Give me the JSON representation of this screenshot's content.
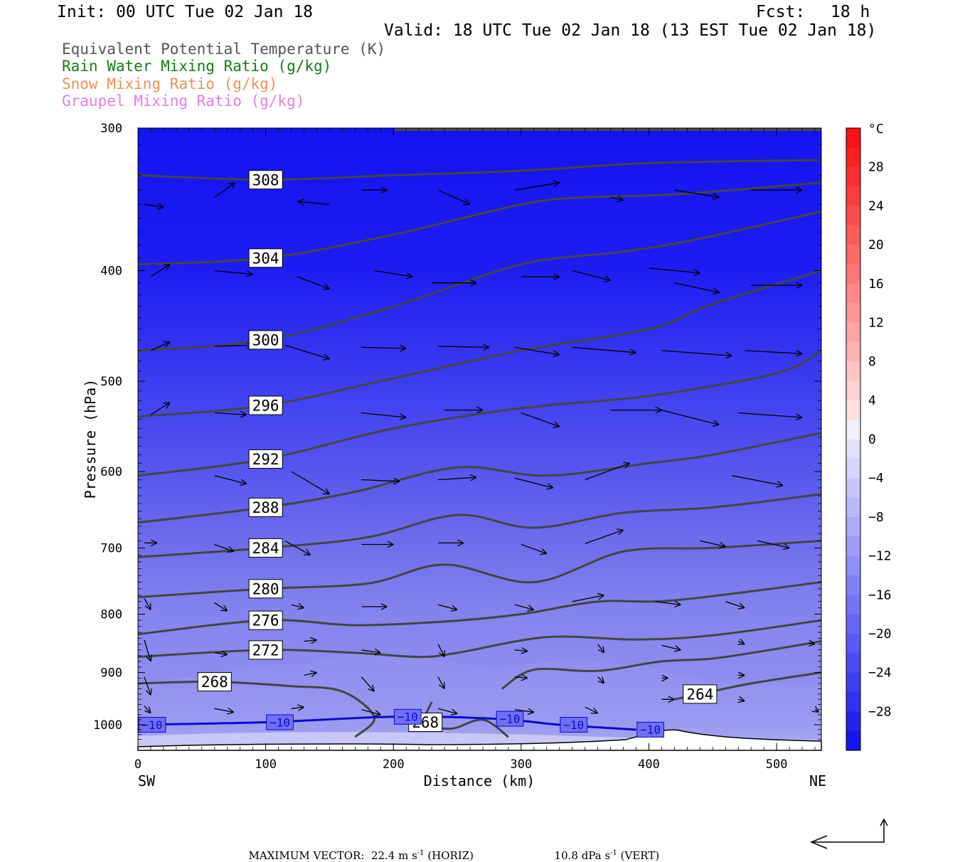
{
  "header": {
    "init": "Init: 00 UTC Tue 02 Jan 18",
    "fcst_label": "Fcst:",
    "fcst_value": "18 h",
    "valid": "Valid: 18 UTC Tue 02 Jan 18 (13 EST Tue 02 Jan 18)"
  },
  "legend": [
    {
      "label": "Equivalent Potential Temperature (K)",
      "color": "#555555"
    },
    {
      "label": "Rain Water Mixing Ratio (g/kg)",
      "color": "#1a7a1a"
    },
    {
      "label": "Snow Mixing Ratio (g/kg)",
      "color": "#f0905a"
    },
    {
      "label": "Graupel Mixing Ratio (g/kg)",
      "color": "#e87ee0"
    }
  ],
  "axes": {
    "ylabel": "Pressure (hPa)",
    "xlabel": "Distance (km)",
    "left_end": "SW",
    "right_end": "NE",
    "y_ticks": [
      "300",
      "400",
      "500",
      "600",
      "700",
      "800",
      "900",
      "1000"
    ],
    "x_ticks": [
      "0",
      "100",
      "200",
      "300",
      "400",
      "500"
    ]
  },
  "colorbar": {
    "unit": "°C",
    "labels": [
      "28",
      "24",
      "20",
      "16",
      "12",
      "8",
      "4",
      "0",
      "−4",
      "−8",
      "−12",
      "−16",
      "−20",
      "−24",
      "−28"
    ]
  },
  "footer": {
    "max_vector_label": "MAXIMUM VECTOR:",
    "horiz": "22.4 m s",
    "horiz_suffix": " (HORIZ)",
    "vert": "10.8 dPa s",
    "vert_suffix": " (VERT)",
    "exp": "-1"
  },
  "chart_data": {
    "type": "cross-section",
    "x_range_km": [
      0,
      535
    ],
    "y_range_hpa": [
      300,
      1030
    ],
    "y_scale": "log-pressure",
    "theta_e_contours": [
      {
        "value": 308,
        "label": "308",
        "points": [
          [
            0,
            330
          ],
          [
            100,
            333
          ],
          [
            200,
            330
          ],
          [
            300,
            327
          ],
          [
            400,
            322
          ],
          [
            535,
            320
          ]
        ]
      },
      {
        "value": 304,
        "label": "304",
        "points": [
          [
            0,
            395
          ],
          [
            100,
            390
          ],
          [
            200,
            372
          ],
          [
            300,
            350
          ],
          [
            350,
            345
          ],
          [
            420,
            343
          ],
          [
            535,
            335
          ]
        ]
      },
      {
        "value": 300,
        "label": "300",
        "points": [
          [
            0,
            470
          ],
          [
            100,
            460
          ],
          [
            200,
            430
          ],
          [
            300,
            395
          ],
          [
            380,
            385
          ],
          [
            440,
            375
          ],
          [
            535,
            355
          ]
        ]
      },
      {
        "value": 296,
        "label": "296",
        "points": [
          [
            0,
            537
          ],
          [
            100,
            525
          ],
          [
            200,
            497
          ],
          [
            300,
            470
          ],
          [
            400,
            450
          ],
          [
            450,
            428
          ],
          [
            535,
            400
          ]
        ]
      },
      {
        "value": 292,
        "label": "292",
        "points": [
          [
            0,
            605
          ],
          [
            100,
            585
          ],
          [
            200,
            550
          ],
          [
            300,
            528
          ],
          [
            400,
            515
          ],
          [
            500,
            492
          ],
          [
            535,
            470
          ]
        ]
      },
      {
        "value": 288,
        "label": "288",
        "points": [
          [
            0,
            665
          ],
          [
            100,
            645
          ],
          [
            170,
            625
          ],
          [
            250,
            595
          ],
          [
            320,
            605
          ],
          [
            400,
            590
          ],
          [
            450,
            580
          ],
          [
            535,
            555
          ]
        ]
      },
      {
        "value": 284,
        "label": "284",
        "points": [
          [
            0,
            713
          ],
          [
            100,
            700
          ],
          [
            180,
            685
          ],
          [
            250,
            655
          ],
          [
            310,
            672
          ],
          [
            380,
            652
          ],
          [
            450,
            645
          ],
          [
            535,
            628
          ]
        ]
      },
      {
        "value": 280,
        "label": "280",
        "points": [
          [
            0,
            773
          ],
          [
            100,
            760
          ],
          [
            180,
            752
          ],
          [
            240,
            724
          ],
          [
            310,
            750
          ],
          [
            380,
            705
          ],
          [
            450,
            700
          ],
          [
            535,
            690
          ]
        ]
      },
      {
        "value": 276,
        "label": "276",
        "points": [
          [
            0,
            833
          ],
          [
            100,
            810
          ],
          [
            170,
            818
          ],
          [
            240,
            812
          ],
          [
            300,
            800
          ],
          [
            360,
            780
          ],
          [
            420,
            778
          ],
          [
            535,
            750
          ]
        ]
      },
      {
        "value": 272,
        "label": "272",
        "points": [
          [
            0,
            872
          ],
          [
            100,
            860
          ],
          [
            170,
            865
          ],
          [
            220,
            872
          ],
          [
            250,
            865
          ],
          [
            320,
            838
          ],
          [
            390,
            842
          ],
          [
            450,
            835
          ],
          [
            535,
            810
          ]
        ]
      },
      {
        "value": 268,
        "label": "268",
        "points": [
          [
            0,
            920
          ],
          [
            60,
            917
          ],
          [
            120,
            925
          ],
          [
            160,
            935
          ],
          [
            185,
            985
          ],
          [
            170,
            1025
          ]
        ]
      },
      {
        "value": 268,
        "label": "268",
        "points": [
          [
            230,
            955
          ],
          [
            225,
            995
          ],
          [
            245,
            1008
          ],
          [
            270,
            990
          ],
          [
            290,
            1025
          ]
        ]
      },
      {
        "value": 268,
        "label": "",
        "points": [
          [
            285,
            930
          ],
          [
            310,
            895
          ],
          [
            360,
            897
          ],
          [
            410,
            880
          ],
          [
            450,
            875
          ],
          [
            500,
            858
          ],
          [
            535,
            845
          ]
        ]
      },
      {
        "value": 264,
        "label": "264",
        "points": [
          [
            420,
            950
          ],
          [
            440,
            940
          ],
          [
            480,
            920
          ],
          [
            535,
            900
          ]
        ]
      }
    ],
    "temperature_contour_minus10": {
      "label": "−10",
      "points": [
        [
          0,
          1000
        ],
        [
          100,
          995
        ],
        [
          200,
          984
        ],
        [
          280,
          988
        ],
        [
          330,
          1000
        ],
        [
          390,
          1010
        ]
      ]
    },
    "wind_vectors": [
      [
        5,
        350,
        20,
        352
      ],
      [
        60,
        345,
        76,
        335
      ],
      [
        150,
        350,
        125,
        348
      ],
      [
        175,
        340,
        195,
        340
      ],
      [
        235,
        340,
        260,
        350
      ],
      [
        295,
        340,
        330,
        335
      ],
      [
        370,
        345,
        380,
        347
      ],
      [
        420,
        340,
        455,
        345
      ],
      [
        480,
        340,
        520,
        340
      ],
      [
        10,
        405,
        25,
        395
      ],
      [
        60,
        400,
        90,
        403
      ],
      [
        125,
        405,
        150,
        415
      ],
      [
        185,
        400,
        215,
        405
      ],
      [
        230,
        410,
        265,
        410
      ],
      [
        300,
        405,
        330,
        405
      ],
      [
        340,
        400,
        370,
        408
      ],
      [
        400,
        398,
        440,
        402
      ],
      [
        420,
        410,
        455,
        418
      ],
      [
        480,
        412,
        520,
        412
      ],
      [
        10,
        470,
        25,
        462
      ],
      [
        60,
        466,
        90,
        465
      ],
      [
        115,
        465,
        150,
        478
      ],
      [
        175,
        467,
        210,
        468
      ],
      [
        235,
        466,
        275,
        467
      ],
      [
        295,
        467,
        330,
        474
      ],
      [
        340,
        467,
        390,
        472
      ],
      [
        410,
        470,
        465,
        475
      ],
      [
        475,
        470,
        520,
        473
      ],
      [
        10,
        535,
        25,
        522
      ],
      [
        60,
        533,
        85,
        535
      ],
      [
        175,
        533,
        210,
        538
      ],
      [
        240,
        530,
        270,
        530
      ],
      [
        300,
        533,
        330,
        548
      ],
      [
        370,
        530,
        410,
        530
      ],
      [
        410,
        530,
        455,
        546
      ],
      [
        470,
        533,
        520,
        538
      ],
      [
        60,
        605,
        85,
        615
      ],
      [
        120,
        600,
        150,
        628
      ],
      [
        175,
        610,
        205,
        612
      ],
      [
        235,
        610,
        265,
        607
      ],
      [
        295,
        608,
        325,
        620
      ],
      [
        350,
        610,
        385,
        590
      ],
      [
        465,
        605,
        505,
        617
      ],
      [
        5,
        693,
        15,
        693
      ],
      [
        60,
        695,
        75,
        705
      ],
      [
        115,
        690,
        135,
        710
      ],
      [
        175,
        695,
        200,
        695
      ],
      [
        235,
        693,
        255,
        693
      ],
      [
        300,
        695,
        320,
        708
      ],
      [
        350,
        694,
        380,
        675
      ],
      [
        440,
        690,
        460,
        698
      ],
      [
        485,
        690,
        510,
        700
      ],
      [
        5,
        775,
        10,
        793
      ],
      [
        60,
        782,
        70,
        795
      ],
      [
        120,
        785,
        130,
        790
      ],
      [
        175,
        788,
        195,
        788
      ],
      [
        235,
        785,
        250,
        793
      ],
      [
        295,
        785,
        310,
        793
      ],
      [
        340,
        780,
        365,
        770
      ],
      [
        405,
        780,
        425,
        785
      ],
      [
        460,
        780,
        475,
        790
      ],
      [
        5,
        843,
        10,
        880
      ],
      [
        60,
        865,
        70,
        868
      ],
      [
        130,
        845,
        140,
        843
      ],
      [
        175,
        860,
        190,
        865
      ],
      [
        235,
        850,
        240,
        872
      ],
      [
        295,
        860,
        305,
        862
      ],
      [
        360,
        850,
        365,
        865
      ],
      [
        410,
        852,
        425,
        860
      ],
      [
        470,
        845,
        475,
        850
      ],
      [
        525,
        848,
        530,
        850
      ],
      [
        5,
        908,
        10,
        942
      ],
      [
        60,
        908,
        72,
        915
      ],
      [
        130,
        905,
        140,
        900
      ],
      [
        175,
        908,
        185,
        935
      ],
      [
        235,
        908,
        240,
        930
      ],
      [
        295,
        908,
        305,
        910
      ],
      [
        360,
        908,
        365,
        920
      ],
      [
        410,
        910,
        415,
        910
      ],
      [
        470,
        905,
        475,
        905
      ],
      [
        5,
        963,
        10,
        977
      ],
      [
        60,
        968,
        75,
        975
      ],
      [
        120,
        968,
        130,
        965
      ],
      [
        175,
        970,
        190,
        980
      ],
      [
        235,
        968,
        250,
        978
      ],
      [
        295,
        970,
        310,
        975
      ],
      [
        350,
        965,
        360,
        977
      ],
      [
        410,
        950,
        420,
        950
      ],
      [
        470,
        950,
        475,
        953
      ],
      [
        530,
        970,
        533,
        975
      ]
    ]
  }
}
